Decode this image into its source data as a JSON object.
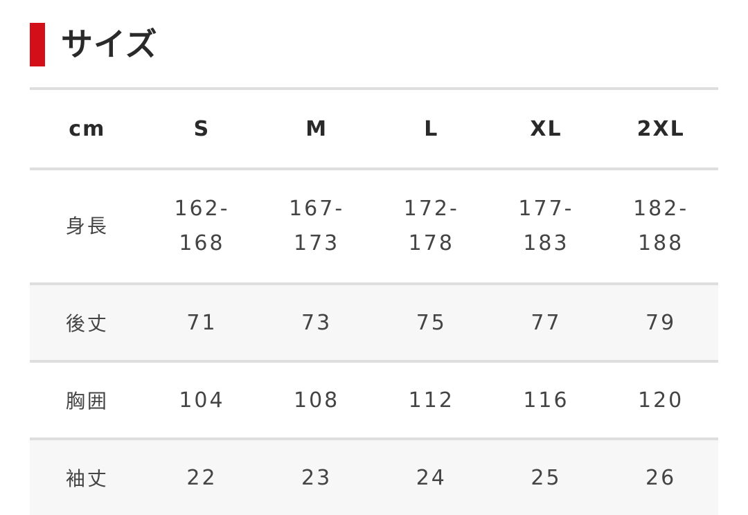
{
  "title": "サイズ",
  "colors": {
    "accent": "#d3101a",
    "divider": "#dedede",
    "alt_row": "#f7f7f7"
  },
  "table": {
    "headers": [
      "cm",
      "S",
      "M",
      "L",
      "XL",
      "2XL"
    ],
    "rows": [
      {
        "label": "身長",
        "values": [
          [
            "162-",
            "168"
          ],
          [
            "167-",
            "173"
          ],
          [
            "172-",
            "178"
          ],
          [
            "177-",
            "183"
          ],
          [
            "182-",
            "188"
          ]
        ]
      },
      {
        "label": "後丈",
        "values": [
          "71",
          "73",
          "75",
          "77",
          "79"
        ]
      },
      {
        "label": "胸囲",
        "values": [
          "104",
          "108",
          "112",
          "116",
          "120"
        ]
      },
      {
        "label": "袖丈",
        "values": [
          "22",
          "23",
          "24",
          "25",
          "26"
        ]
      }
    ]
  }
}
